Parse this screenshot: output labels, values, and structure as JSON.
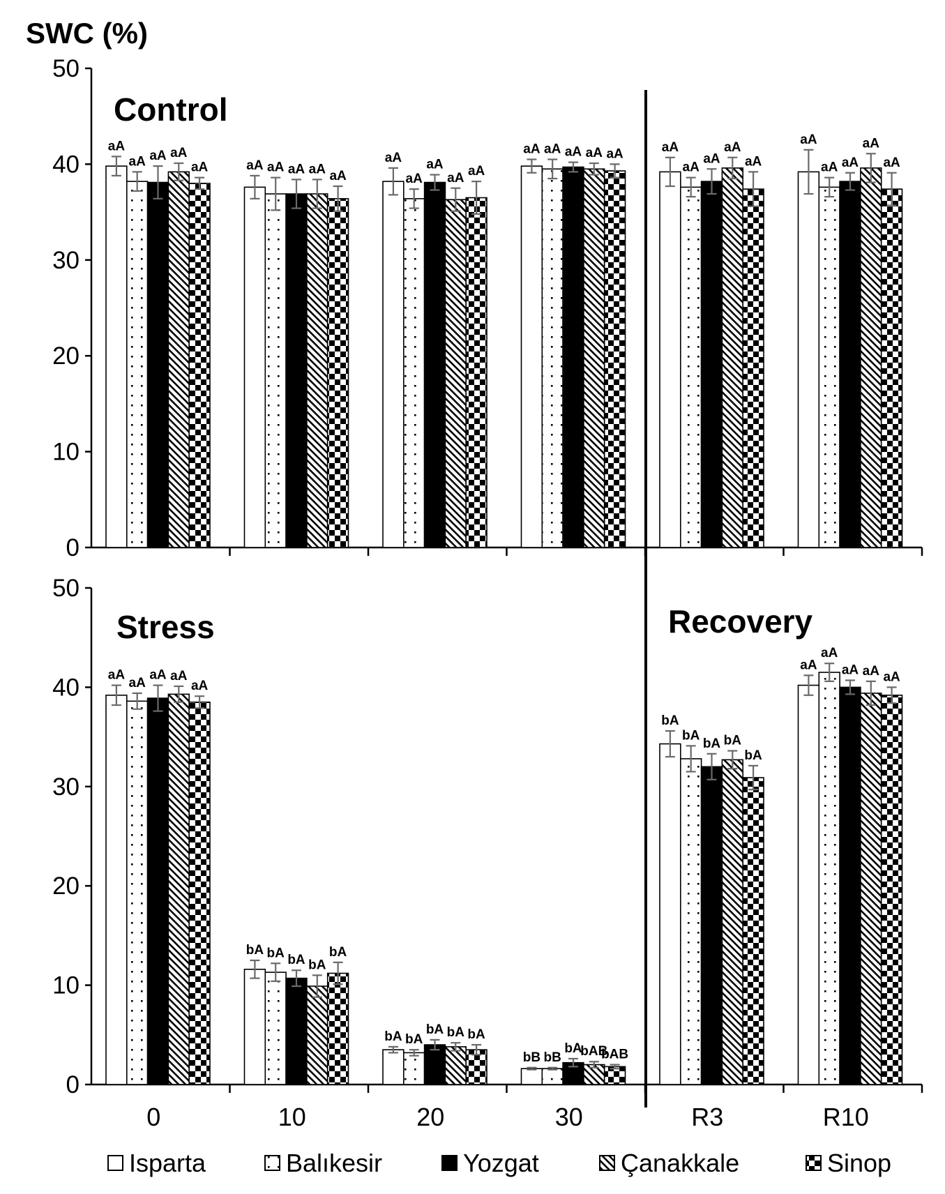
{
  "chart_data": {
    "type": "bar",
    "ylabel": "SWC (%)",
    "ylim": [
      0,
      50
    ],
    "yticks": [
      0,
      10,
      20,
      30,
      40,
      50
    ],
    "categories": [
      "0",
      "10",
      "20",
      "30",
      "R3",
      "R10"
    ],
    "series_names": [
      "Isparta",
      "Balıkesir",
      "Yozgat",
      "Çanakkale",
      "Sinop"
    ],
    "legend_position": "bottom",
    "panels": [
      {
        "name": "control",
        "titles": [
          "Control"
        ],
        "values": [
          [
            39.8,
            38.2,
            38.1,
            39.2,
            38.0
          ],
          [
            37.6,
            36.9,
            36.9,
            36.9,
            36.4
          ],
          [
            38.2,
            36.4,
            38.1,
            36.3,
            36.5
          ],
          [
            39.8,
            39.5,
            39.7,
            39.5,
            39.3
          ],
          [
            39.2,
            37.6,
            38.2,
            39.6,
            37.4
          ],
          [
            39.2,
            37.6,
            38.2,
            39.6,
            37.4
          ]
        ],
        "errors": [
          [
            1.0,
            1.0,
            1.7,
            0.9,
            0.6
          ],
          [
            1.2,
            1.7,
            1.5,
            1.5,
            1.3
          ],
          [
            1.4,
            1.0,
            0.8,
            1.2,
            1.7
          ],
          [
            0.7,
            1.0,
            0.5,
            0.6,
            0.7
          ],
          [
            1.5,
            1.0,
            1.3,
            1.1,
            1.8
          ],
          [
            2.3,
            1.0,
            0.9,
            1.5,
            1.7
          ]
        ],
        "letters": [
          [
            "aA",
            "aA",
            "aA",
            "aA",
            "aA"
          ],
          [
            "aA",
            "aA",
            "aA",
            "aA",
            "aA"
          ],
          [
            "aA",
            "aA",
            "aA",
            "aA",
            "aA"
          ],
          [
            "aA",
            "aA",
            "aA",
            "aA",
            "aA"
          ],
          [
            "aA",
            "aA",
            "aA",
            "aA",
            "aA"
          ],
          [
            "aA",
            "aA",
            "aA",
            "aA",
            "aA"
          ]
        ]
      },
      {
        "name": "stress-recovery",
        "titles": [
          "Stress",
          "Recovery"
        ],
        "values": [
          [
            39.2,
            38.6,
            38.9,
            39.3,
            38.5
          ],
          [
            11.6,
            11.3,
            10.7,
            9.9,
            11.2
          ],
          [
            3.5,
            3.2,
            4.0,
            3.8,
            3.5
          ],
          [
            1.6,
            1.6,
            2.2,
            2.0,
            1.8
          ],
          [
            34.3,
            32.8,
            32.0,
            32.7,
            30.9
          ],
          [
            40.2,
            41.5,
            40.0,
            39.4,
            39.2
          ]
        ],
        "errors": [
          [
            1.0,
            0.8,
            1.3,
            0.8,
            0.6
          ],
          [
            0.9,
            0.9,
            0.8,
            1.1,
            1.1
          ],
          [
            0.3,
            0.3,
            0.5,
            0.4,
            0.5
          ],
          [
            0.1,
            0.1,
            0.4,
            0.3,
            0.2
          ],
          [
            1.3,
            1.3,
            1.3,
            0.9,
            1.2
          ],
          [
            1.0,
            0.9,
            0.7,
            1.2,
            0.8
          ]
        ],
        "letters": [
          [
            "aA",
            "aA",
            "aA",
            "aA",
            "aA"
          ],
          [
            "bA",
            "bA",
            "bA",
            "bA",
            "bA"
          ],
          [
            "bA",
            "bA",
            "bA",
            "bA",
            "bA"
          ],
          [
            "bB",
            "bB",
            "bA",
            "bAB",
            "bAB"
          ],
          [
            "bA",
            "bA",
            "bA",
            "bA",
            "bA"
          ],
          [
            "aA",
            "aA",
            "aA",
            "aA",
            "aA"
          ]
        ]
      }
    ]
  }
}
